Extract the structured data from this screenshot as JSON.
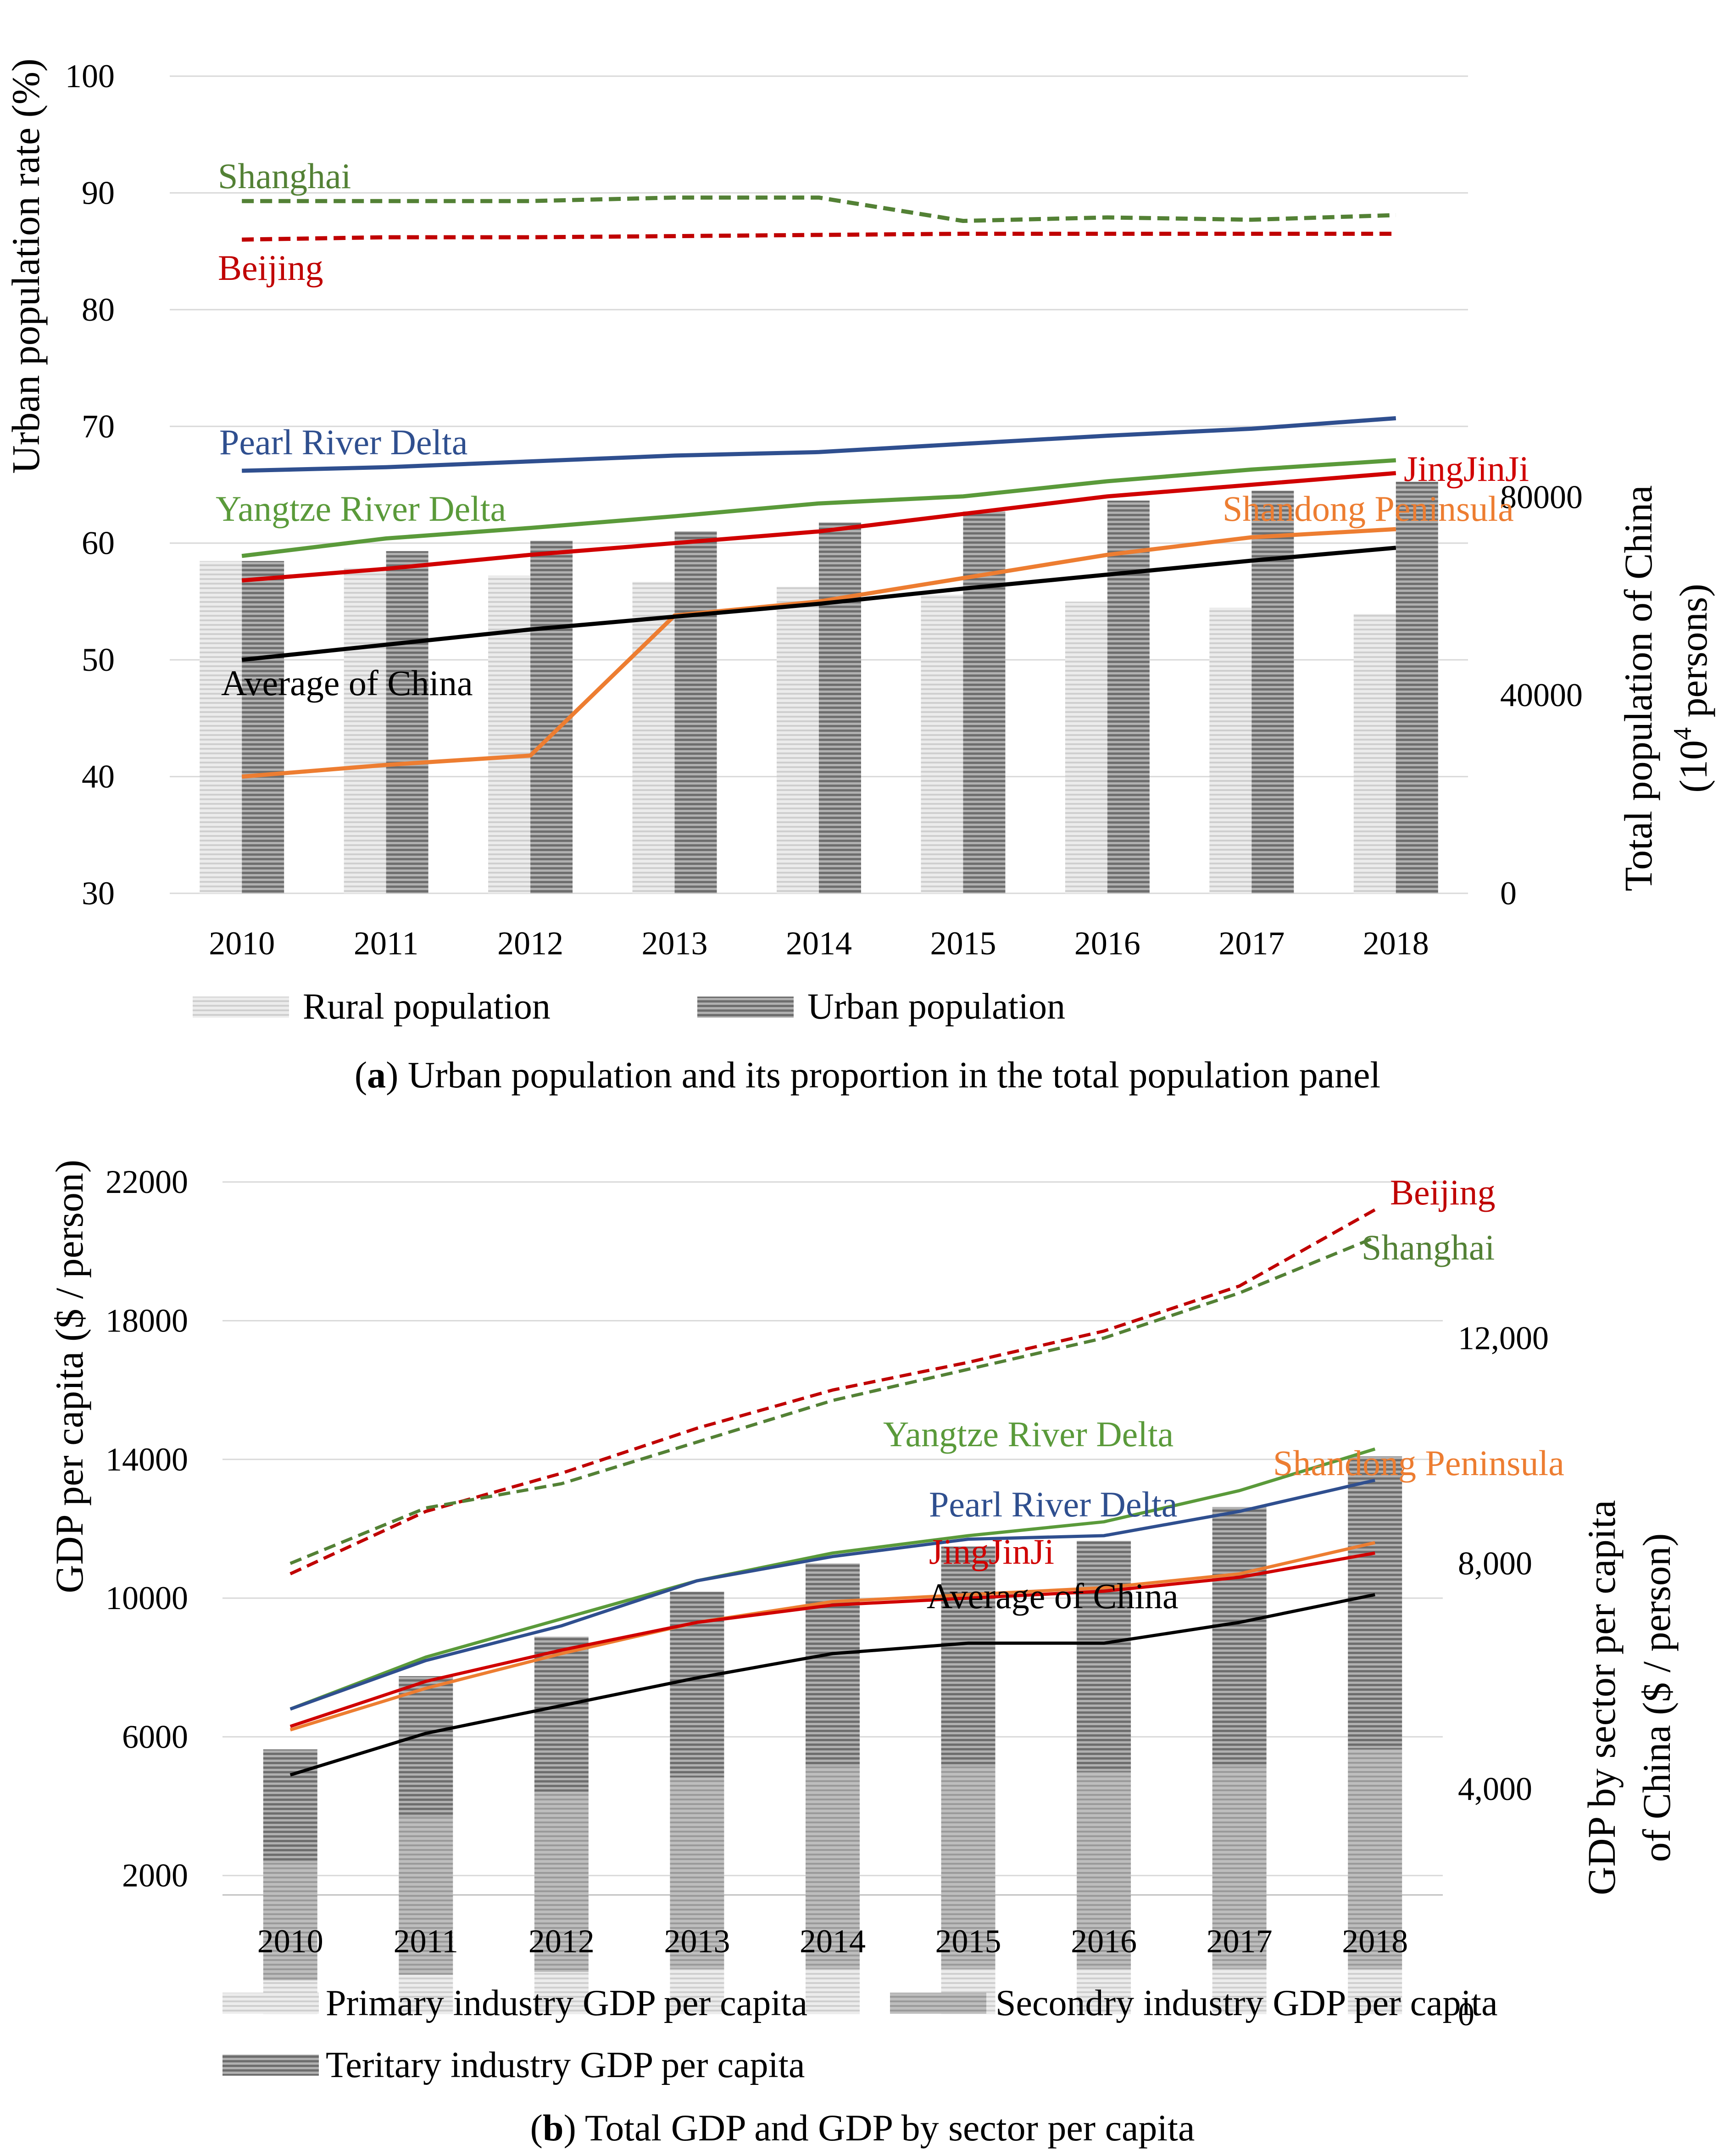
{
  "colors": {
    "beijing": "#c00000",
    "shanghai": "#538135",
    "pearl": "#2f4f8f",
    "yangtze": "#5a9a3a",
    "jingjinji": "#d00000",
    "shandong": "#ed7d31",
    "china": "#000000",
    "grid": "#d9d9d9",
    "bar_light": "#d0d0d0",
    "bar_dark": "#7f7f7f"
  },
  "chart_data": [
    {
      "type": "line+bar",
      "id": "a",
      "caption_prefix": "(",
      "caption_bold": "a",
      "caption_rest": ") Urban population and its proportion in the total population panel",
      "years": [
        "2010",
        "2011",
        "2012",
        "2013",
        "2014",
        "2015",
        "2016",
        "2017",
        "2018"
      ],
      "y_left": {
        "label": "Urban population rate (%)",
        "range": [
          30,
          100
        ],
        "ticks": [
          30,
          40,
          50,
          60,
          70,
          80,
          90,
          100
        ]
      },
      "y_right": {
        "label_line1": "Total population of China",
        "label_line2_pre": "(10",
        "label_line2_sup": "4",
        "label_line2_post": " persons)",
        "range": [
          0,
          165000
        ],
        "ticks": [
          0,
          40000,
          80000
        ],
        "tick_labels": [
          "0",
          "40000",
          "80000"
        ]
      },
      "series": [
        {
          "key": "shanghai",
          "name": "Shanghai",
          "dashed": true,
          "values": [
            89.3,
            89.3,
            89.3,
            89.6,
            89.6,
            87.6,
            87.9,
            87.7,
            88.1
          ]
        },
        {
          "key": "beijing",
          "name": "Beijing",
          "dashed": true,
          "values": [
            86.0,
            86.2,
            86.2,
            86.3,
            86.4,
            86.5,
            86.5,
            86.5,
            86.5
          ]
        },
        {
          "key": "pearl",
          "name": "Pearl River Delta",
          "dashed": false,
          "values": [
            66.2,
            66.5,
            67.0,
            67.5,
            67.8,
            68.5,
            69.2,
            69.8,
            70.7
          ]
        },
        {
          "key": "jingjinji",
          "name": "JingJinJi",
          "dashed": false,
          "values": [
            56.8,
            57.8,
            59.0,
            60.0,
            61.0,
            62.5,
            64.0,
            65.0,
            66.0
          ]
        },
        {
          "key": "yangtze",
          "name": "Yangtze River Delta",
          "dashed": false,
          "values": [
            58.9,
            60.4,
            61.3,
            62.3,
            63.4,
            64.0,
            65.3,
            66.3,
            67.1
          ]
        },
        {
          "key": "shandong",
          "name": "Shandong Peninsula",
          "dashed": false,
          "values": [
            40.0,
            41.0,
            41.8,
            53.8,
            55.0,
            57.0,
            59.0,
            60.5,
            61.2
          ]
        },
        {
          "key": "china",
          "name": "Average of China",
          "dashed": false,
          "values": [
            50.0,
            51.3,
            52.6,
            53.7,
            54.8,
            56.1,
            57.3,
            58.5,
            59.6
          ]
        }
      ],
      "bars": [
        {
          "name": "Rural population",
          "color_key": "bar_light",
          "values": [
            67100,
            65700,
            64200,
            62900,
            61900,
            60300,
            58900,
            57700,
            56400
          ]
        },
        {
          "name": "Urban population",
          "color_key": "bar_dark",
          "values": [
            67100,
            69100,
            71200,
            73100,
            74900,
            77100,
            79300,
            81300,
            83100
          ]
        }
      ]
    },
    {
      "type": "line+bar",
      "id": "b",
      "caption_prefix": "(",
      "caption_bold": "b",
      "caption_rest": ") Total GDP and GDP by sector per capita",
      "years": [
        "2010",
        "2011",
        "2012",
        "2013",
        "2014",
        "2015",
        "2016",
        "2017",
        "2018"
      ],
      "y_left": {
        "label": "GDP per capita ($ / person)",
        "range": [
          -2000,
          24000
        ],
        "ticks": [
          2000,
          6000,
          10000,
          14000,
          18000,
          22000
        ]
      },
      "y_right": {
        "label_line1": "GDP by sector per capita",
        "label_line2": "of  China ($ / person)",
        "range": [
          0,
          16000
        ],
        "ticks": [
          0,
          4000,
          8000,
          12000
        ],
        "tick_labels": [
          "0",
          "4,000",
          "8,000",
          "12,000"
        ]
      },
      "series": [
        {
          "key": "beijing",
          "name": "Beijing",
          "dashed": true,
          "values": [
            10700,
            12500,
            13600,
            14900,
            16000,
            16800,
            17700,
            19000,
            21200
          ]
        },
        {
          "key": "shanghai",
          "name": "Shanghai",
          "dashed": true,
          "values": [
            11000,
            12600,
            13300,
            14500,
            15700,
            16600,
            17500,
            18800,
            20400
          ]
        },
        {
          "key": "yangtze",
          "name": "Yangtze River Delta",
          "dashed": false,
          "values": [
            6800,
            8300,
            9400,
            10500,
            11300,
            11800,
            12200,
            13100,
            14300
          ]
        },
        {
          "key": "pearl",
          "name": "Pearl River Delta",
          "dashed": false,
          "values": [
            6800,
            8200,
            9200,
            10500,
            11200,
            11700,
            11800,
            12500,
            13400
          ]
        },
        {
          "key": "shandong",
          "name": "Shandong Peninsula",
          "dashed": false,
          "values": [
            6200,
            7400,
            8400,
            9300,
            9900,
            10100,
            10300,
            10700,
            11600
          ]
        },
        {
          "key": "jingjinji",
          "name": "JingJinJi",
          "dashed": false,
          "values": [
            6300,
            7600,
            8500,
            9300,
            9800,
            10000,
            10200,
            10600,
            11300
          ]
        },
        {
          "key": "china",
          "name": "Average of China",
          "dashed": false,
          "values": [
            4900,
            6100,
            6900,
            7700,
            8400,
            8700,
            8700,
            9300,
            10100
          ]
        }
      ],
      "bars": [
        {
          "name": "Primary industry GDP per capita",
          "color_key": "bar_light",
          "values": [
            600,
            700,
            750,
            800,
            800,
            800,
            800,
            800,
            800
          ]
        },
        {
          "name": "Secondry industry GDP per capita",
          "color_key": "bar_mid",
          "values": [
            2100,
            2800,
            3200,
            3400,
            3600,
            3600,
            3500,
            3600,
            3900
          ]
        },
        {
          "name": "Teritary industry GDP per capita",
          "color_key": "bar_dark",
          "values": [
            2000,
            2500,
            2750,
            3300,
            3600,
            3900,
            4100,
            4600,
            5200
          ]
        }
      ]
    }
  ]
}
